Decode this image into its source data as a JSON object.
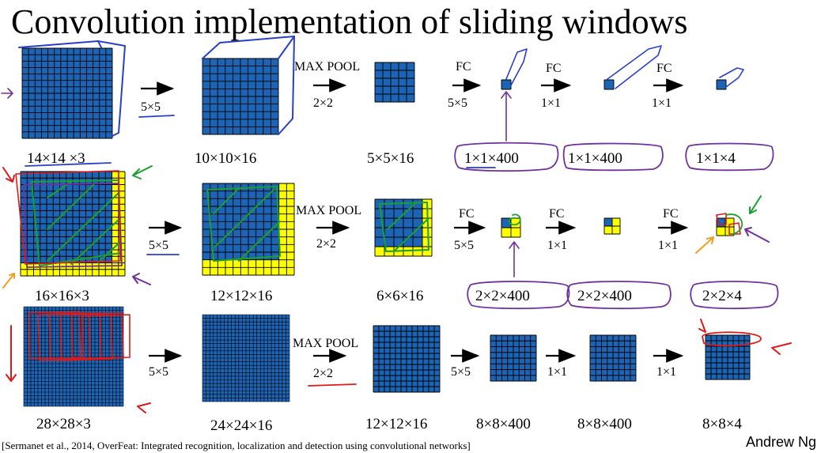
{
  "title": "Convolution implementation of sliding windows",
  "citation": "[Sermanet et al., 2014, OverFeat: Integrated recognition, localization and detection using convolutional networks]",
  "author": "Andrew Ng",
  "colors": {
    "cell_blue": "#1e64b4",
    "cell_yellow": "#ffff00",
    "grid_line": "#000000",
    "ink_blue": "#2a3fc8",
    "ink_green": "#18a030",
    "ink_red": "#e01818",
    "ink_purple": "#7030a0",
    "ink_orange": "#f0a020"
  },
  "rows": [
    {
      "input_label": "14×14 ×3",
      "ops": [
        {
          "name": "",
          "size": "5×5"
        },
        {
          "name": "MAX POOL",
          "size": "2×2"
        },
        {
          "name": "FC",
          "size": "5×5"
        },
        {
          "name": "FC",
          "size": "1×1"
        },
        {
          "name": "FC",
          "size": "1×1"
        }
      ],
      "volume_labels": [
        "10×10×16",
        "5×5×16",
        "1×1×400",
        "1×1×400",
        "1×1×4"
      ]
    },
    {
      "input_label": "16×16×3",
      "ops": [
        {
          "name": "",
          "size": "5×5"
        },
        {
          "name": "MAX POOL",
          "size": "2×2"
        },
        {
          "name": "FC",
          "size": "5×5"
        },
        {
          "name": "FC",
          "size": "1×1"
        },
        {
          "name": "FC",
          "size": "1×1"
        }
      ],
      "volume_labels": [
        "12×12×16",
        "6×6×16",
        "2×2×400",
        "2×2×400",
        "2×2×4"
      ]
    },
    {
      "input_label": "28×28×3",
      "ops": [
        {
          "name": "",
          "size": "5×5"
        },
        {
          "name": "MAX POOL",
          "size": "2×2"
        },
        {
          "name": "",
          "size": "5×5"
        },
        {
          "name": "",
          "size": "1×1"
        },
        {
          "name": "",
          "size": "1×1"
        }
      ],
      "volume_labels": [
        "24×24×16",
        "12×12×16",
        "8×8×400",
        "8×8×400",
        "8×8×4"
      ]
    }
  ]
}
